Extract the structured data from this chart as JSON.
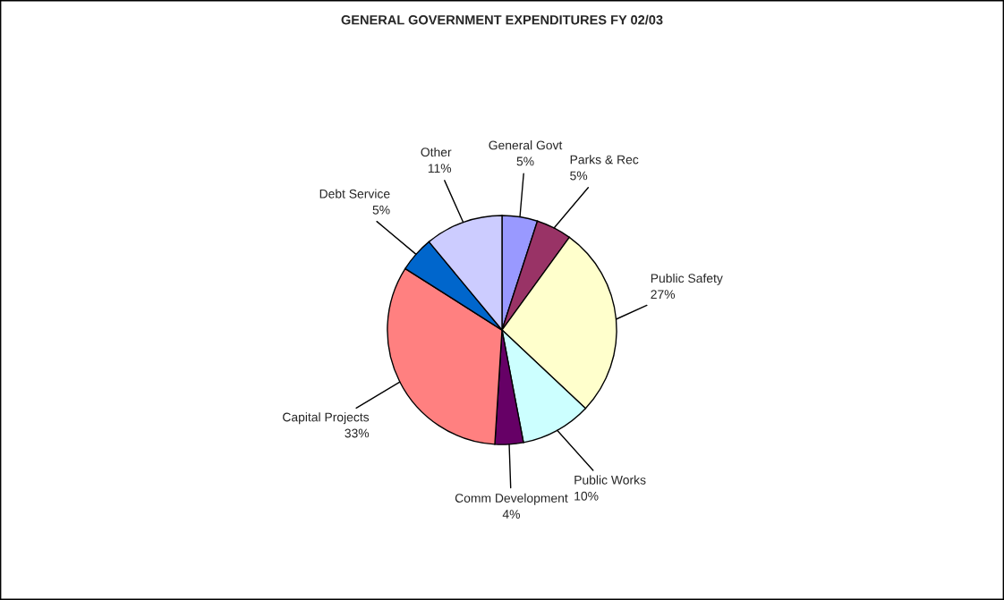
{
  "chart_data": {
    "type": "pie",
    "title": "GENERAL GOVERNMENT EXPENDITURES FY 02/03",
    "categories": [
      "General Govt",
      "Parks & Rec",
      "Public Safety",
      "Public Works",
      "Comm Development",
      "Capital Projects",
      "Debt Service",
      "Other"
    ],
    "values": [
      5,
      5,
      27,
      10,
      4,
      33,
      5,
      11
    ],
    "value_labels": [
      "5%",
      "5%",
      "27%",
      "10%",
      "4%",
      "33%",
      "5%",
      "11%"
    ],
    "colors": [
      "#9999ff",
      "#993366",
      "#ffffcc",
      "#ccffff",
      "#660066",
      "#ff8080",
      "#0066cc",
      "#ccccff"
    ]
  }
}
